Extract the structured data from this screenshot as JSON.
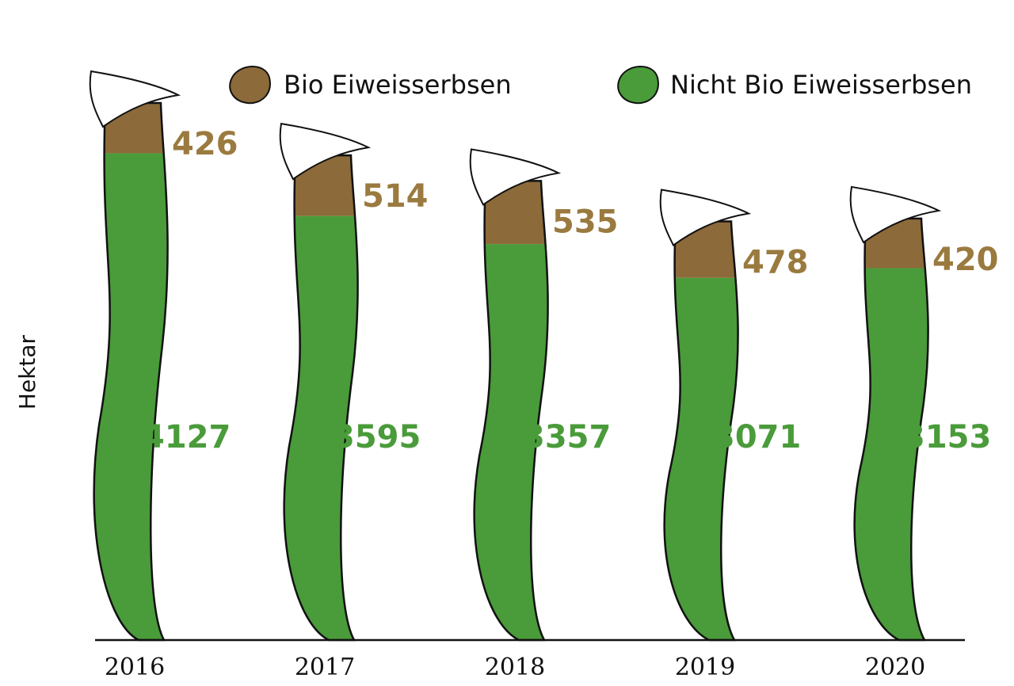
{
  "chart_data": {
    "type": "bar",
    "stacked": true,
    "title": "",
    "xlabel": "",
    "ylabel": "Hektar",
    "categories": [
      "2016",
      "2017",
      "2018",
      "2019",
      "2020"
    ],
    "series": [
      {
        "name": "Nicht Bio Eiweisserbsen",
        "values": [
          4127,
          3595,
          3357,
          3071,
          3153
        ],
        "color": "#4a9b3a",
        "label_color": "#4a9b3a"
      },
      {
        "name": "Bio Eiweisserbsen",
        "values": [
          426,
          514,
          535,
          478,
          420
        ],
        "color": "#8c6a3a",
        "label_color": "#9a7a3e"
      }
    ],
    "ylim": [
      0,
      4600
    ],
    "grid": false,
    "legend_position": "top",
    "mark_style": "pea-pod"
  }
}
